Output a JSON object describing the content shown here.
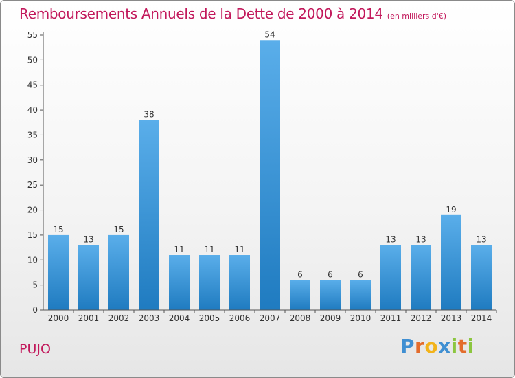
{
  "header": {
    "title": "Remboursements Annuels de la Dette de 2000 à 2014",
    "subtitle": "(en milliers d'€)"
  },
  "footer": {
    "commune": "PUJO",
    "brand_letters": [
      {
        "ch": "P",
        "color": "#3f8fd2"
      },
      {
        "ch": "r",
        "color": "#e36c2c"
      },
      {
        "ch": "o",
        "color": "#f2b31a"
      },
      {
        "ch": "x",
        "color": "#3f8fd2"
      },
      {
        "ch": "i",
        "color": "#8cc63f"
      },
      {
        "ch": "t",
        "color": "#e36c2c"
      },
      {
        "ch": "i",
        "color": "#8cc63f"
      }
    ]
  },
  "colors": {
    "title": "#c2185b",
    "bar_top": "#5aaeea",
    "bar_bottom": "#1f7bc0"
  },
  "chart_data": {
    "type": "bar",
    "title": "Remboursements Annuels de la Dette de 2000 à 2014",
    "subtitle": "(en milliers d'€)",
    "xlabel": "",
    "ylabel": "",
    "categories": [
      "2000",
      "2001",
      "2002",
      "2003",
      "2004",
      "2005",
      "2006",
      "2007",
      "2008",
      "2009",
      "2010",
      "2011",
      "2012",
      "2013",
      "2014"
    ],
    "values": [
      15,
      13,
      15,
      38,
      11,
      11,
      11,
      54,
      6,
      6,
      6,
      13,
      13,
      19,
      13
    ],
    "ylim": [
      0,
      55
    ],
    "yticks": [
      0,
      5,
      10,
      15,
      20,
      25,
      30,
      35,
      40,
      45,
      50,
      55
    ],
    "grid": false,
    "legend": "none"
  }
}
